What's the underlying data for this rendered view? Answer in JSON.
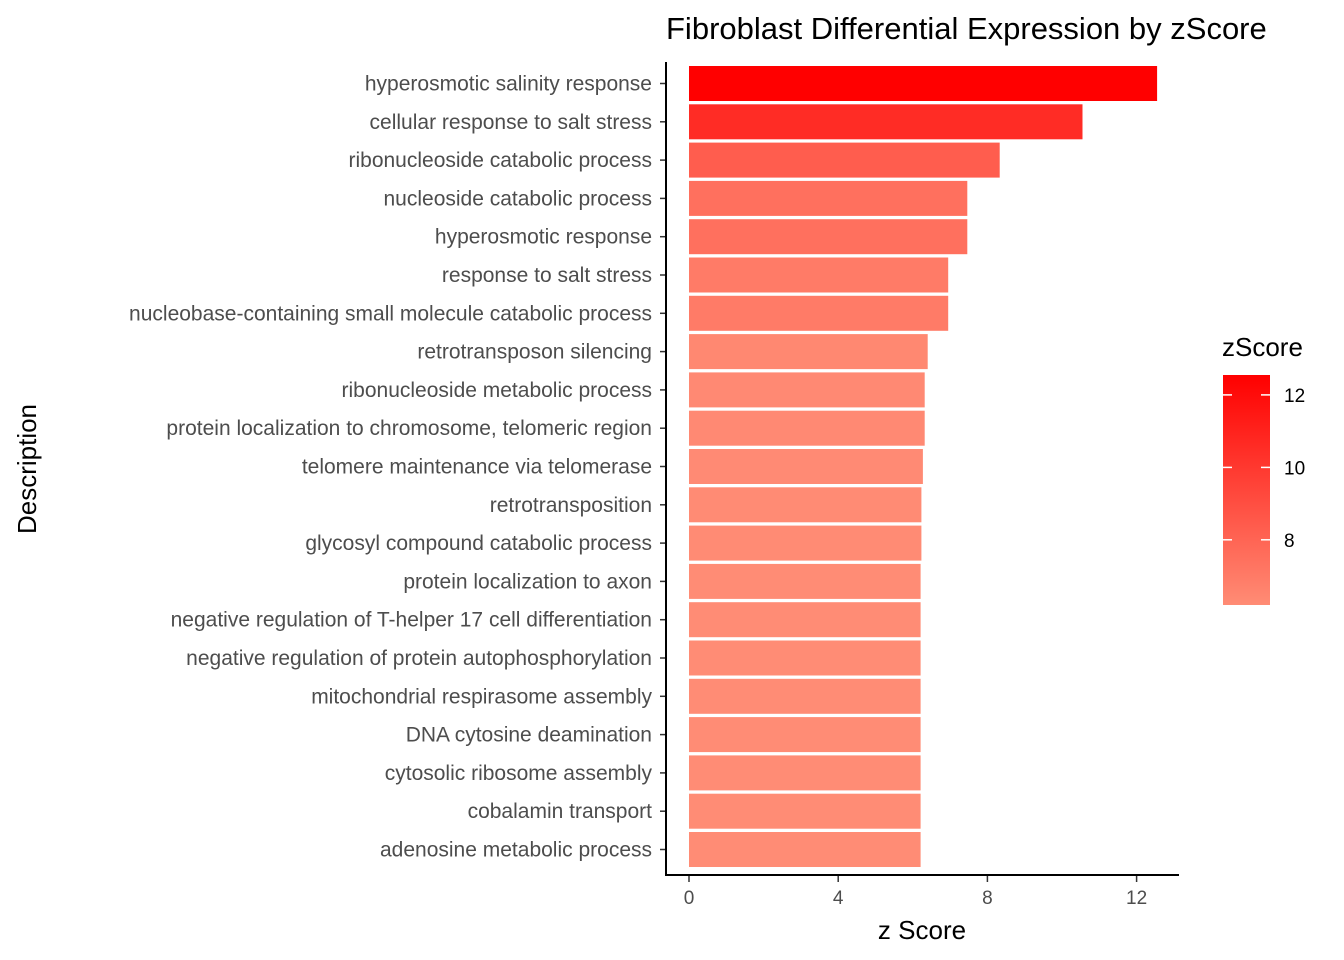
{
  "chart_data": {
    "type": "bar",
    "orientation": "horizontal",
    "title": "Fibroblast Differential Expression by zScore",
    "xlabel": "z Score",
    "ylabel": "Description",
    "xlim": [
      0,
      13
    ],
    "xticks": [
      0,
      4,
      8,
      12
    ],
    "grid": false,
    "legend": {
      "title": "zScore",
      "placement": "right",
      "ticks": [
        8,
        10,
        12
      ],
      "range": [
        6.2,
        12.55
      ],
      "color_low": "#FF8C75",
      "color_high": "#FF0000"
    },
    "categories": [
      "hyperosmotic salinity response",
      "cellular response to salt stress",
      "ribonucleoside catabolic process",
      "nucleoside catabolic process",
      "hyperosmotic response",
      "response to salt stress",
      "nucleobase-containing small molecule catabolic process",
      "retrotransposon silencing",
      "ribonucleoside metabolic process",
      "protein localization to chromosome, telomeric region",
      "telomere maintenance via telomerase",
      "retrotransposition",
      "glycosyl compound catabolic process",
      "protein localization to axon",
      "negative regulation of T-helper 17 cell differentiation",
      "negative regulation of protein autophosphorylation",
      "mitochondrial respirasome assembly",
      "DNA cytosine deamination",
      "cytosolic ribosome assembly",
      "cobalamin transport",
      "adenosine metabolic process"
    ],
    "values": [
      12.55,
      10.55,
      8.33,
      7.46,
      7.46,
      6.95,
      6.95,
      6.4,
      6.32,
      6.32,
      6.27,
      6.23,
      6.23,
      6.21,
      6.21,
      6.21,
      6.21,
      6.21,
      6.21,
      6.21,
      6.21
    ]
  }
}
